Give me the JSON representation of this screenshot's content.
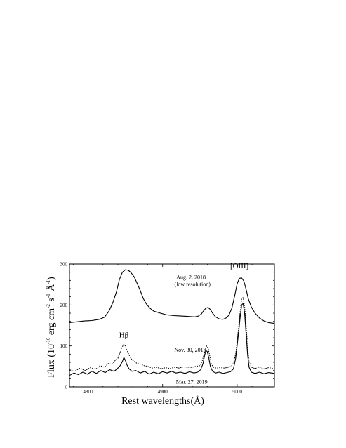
{
  "chart_data": {
    "type": "line",
    "xlabel": "Rest wavelengths",
    "xlabel_unit": "Å",
    "ylabel": {
      "prefix": "Flux  (10",
      "exp1": "-16",
      "mid": " erg cm",
      "exp2": "-2",
      "mid2": " s",
      "exp3": "-1",
      "mid3": " Å",
      "exp4": "-1",
      "suffix": ")"
    },
    "xlim": [
      4775,
      5050
    ],
    "ylim": [
      0,
      300
    ],
    "x_ticks": [
      {
        "value": 4800,
        "label": "4800"
      },
      {
        "value": 4900,
        "label": "4900"
      },
      {
        "value": 5000,
        "label": "5000"
      }
    ],
    "y_ticks": [
      {
        "value": 0,
        "label": "0"
      },
      {
        "value": 100,
        "label": "100"
      },
      {
        "value": 200,
        "label": "200"
      },
      {
        "value": 300,
        "label": "300"
      }
    ],
    "annotations": [
      {
        "id": "aug-label-1",
        "text": "Aug. 2, 2018",
        "x": 4938,
        "y": 263
      },
      {
        "id": "aug-label-2",
        "text": "(low resolution)",
        "x": 4940,
        "y": 246
      },
      {
        "id": "oiii-label",
        "text": "[OIII]",
        "x": 5003,
        "y": 290
      },
      {
        "id": "hbeta-label",
        "text": "Hβ",
        "x": 4848,
        "y": 121
      },
      {
        "id": "nov-label",
        "text": "Nov. 30, 2018",
        "x": 4937,
        "y": 86
      },
      {
        "id": "mar-label",
        "text": "Mar. 27, 2019",
        "x": 4939,
        "y": 8
      }
    ],
    "series": [
      {
        "id": "aug-2018",
        "style": "solid",
        "stroke_width": 1.1,
        "points": [
          [
            4775,
            157
          ],
          [
            4785,
            159
          ],
          [
            4795,
            161
          ],
          [
            4805,
            162
          ],
          [
            4815,
            165
          ],
          [
            4822,
            170
          ],
          [
            4828,
            185
          ],
          [
            4833,
            205
          ],
          [
            4838,
            232
          ],
          [
            4842,
            262
          ],
          [
            4846,
            280
          ],
          [
            4850,
            286
          ],
          [
            4854,
            285
          ],
          [
            4858,
            278
          ],
          [
            4862,
            268
          ],
          [
            4866,
            252
          ],
          [
            4870,
            235
          ],
          [
            4874,
            216
          ],
          [
            4878,
            203
          ],
          [
            4883,
            192
          ],
          [
            4888,
            185
          ],
          [
            4895,
            181
          ],
          [
            4905,
            176
          ],
          [
            4915,
            174
          ],
          [
            4925,
            173
          ],
          [
            4935,
            172
          ],
          [
            4943,
            171
          ],
          [
            4948,
            173
          ],
          [
            4952,
            178
          ],
          [
            4955,
            186
          ],
          [
            4958,
            192
          ],
          [
            4961,
            194
          ],
          [
            4964,
            189
          ],
          [
            4967,
            180
          ],
          [
            4971,
            171
          ],
          [
            4976,
            166
          ],
          [
            4981,
            165
          ],
          [
            4985,
            168
          ],
          [
            4989,
            175
          ],
          [
            4993,
            193
          ],
          [
            4997,
            225
          ],
          [
            5000,
            252
          ],
          [
            5003,
            265
          ],
          [
            5006,
            266
          ],
          [
            5009,
            258
          ],
          [
            5012,
            238
          ],
          [
            5015,
            215
          ],
          [
            5019,
            195
          ],
          [
            5024,
            180
          ],
          [
            5030,
            168
          ],
          [
            5036,
            161
          ],
          [
            5042,
            157
          ],
          [
            5050,
            155
          ]
        ]
      },
      {
        "id": "nov-2018",
        "style": "dotted",
        "stroke_width": 1.0,
        "points": [
          [
            4775,
            43
          ],
          [
            4782,
            38
          ],
          [
            4789,
            46
          ],
          [
            4796,
            40
          ],
          [
            4803,
            47
          ],
          [
            4810,
            43
          ],
          [
            4816,
            52
          ],
          [
            4822,
            48
          ],
          [
            4827,
            57
          ],
          [
            4832,
            55
          ],
          [
            4836,
            64
          ],
          [
            4840,
            70
          ],
          [
            4843,
            85
          ],
          [
            4846,
            98
          ],
          [
            4848,
            104
          ],
          [
            4850,
            100
          ],
          [
            4852,
            90
          ],
          [
            4855,
            78
          ],
          [
            4858,
            68
          ],
          [
            4862,
            62
          ],
          [
            4866,
            57
          ],
          [
            4870,
            56
          ],
          [
            4875,
            52
          ],
          [
            4880,
            50
          ],
          [
            4886,
            46
          ],
          [
            4892,
            48
          ],
          [
            4898,
            44
          ],
          [
            4904,
            47
          ],
          [
            4910,
            45
          ],
          [
            4916,
            48
          ],
          [
            4922,
            46
          ],
          [
            4928,
            49
          ],
          [
            4934,
            47
          ],
          [
            4940,
            48
          ],
          [
            4945,
            50
          ],
          [
            4950,
            52
          ],
          [
            4953,
            62
          ],
          [
            4955,
            76
          ],
          [
            4957,
            90
          ],
          [
            4959,
            100
          ],
          [
            4961,
            95
          ],
          [
            4963,
            78
          ],
          [
            4965,
            58
          ],
          [
            4968,
            48
          ],
          [
            4972,
            46
          ],
          [
            4977,
            47
          ],
          [
            4983,
            46
          ],
          [
            4988,
            48
          ],
          [
            4992,
            50
          ],
          [
            4995,
            58
          ],
          [
            4998,
            80
          ],
          [
            5001,
            130
          ],
          [
            5004,
            185
          ],
          [
            5006,
            216
          ],
          [
            5008,
            218
          ],
          [
            5010,
            198
          ],
          [
            5012,
            150
          ],
          [
            5014,
            95
          ],
          [
            5016,
            62
          ],
          [
            5019,
            48
          ],
          [
            5024,
            45
          ],
          [
            5030,
            48
          ],
          [
            5036,
            44
          ],
          [
            5042,
            47
          ],
          [
            5050,
            45
          ]
        ]
      },
      {
        "id": "mar-2019",
        "style": "solid",
        "stroke_width": 1.1,
        "points": [
          [
            4775,
            28
          ],
          [
            4781,
            34
          ],
          [
            4787,
            30
          ],
          [
            4793,
            36
          ],
          [
            4799,
            31
          ],
          [
            4805,
            38
          ],
          [
            4811,
            33
          ],
          [
            4817,
            40
          ],
          [
            4823,
            35
          ],
          [
            4829,
            42
          ],
          [
            4835,
            38
          ],
          [
            4840,
            46
          ],
          [
            4843,
            52
          ],
          [
            4846,
            62
          ],
          [
            4848,
            72
          ],
          [
            4850,
            65
          ],
          [
            4852,
            54
          ],
          [
            4855,
            44
          ],
          [
            4859,
            38
          ],
          [
            4864,
            40
          ],
          [
            4870,
            34
          ],
          [
            4876,
            38
          ],
          [
            4882,
            31
          ],
          [
            4888,
            36
          ],
          [
            4894,
            32
          ],
          [
            4900,
            37
          ],
          [
            4906,
            34
          ],
          [
            4912,
            38
          ],
          [
            4918,
            34
          ],
          [
            4924,
            36
          ],
          [
            4930,
            33
          ],
          [
            4936,
            37
          ],
          [
            4942,
            34
          ],
          [
            4947,
            36
          ],
          [
            4951,
            42
          ],
          [
            4954,
            56
          ],
          [
            4956,
            74
          ],
          [
            4958,
            89
          ],
          [
            4960,
            86
          ],
          [
            4962,
            70
          ],
          [
            4964,
            50
          ],
          [
            4967,
            38
          ],
          [
            4971,
            34
          ],
          [
            4976,
            36
          ],
          [
            4981,
            33
          ],
          [
            4986,
            35
          ],
          [
            4991,
            37
          ],
          [
            4995,
            44
          ],
          [
            4998,
            70
          ],
          [
            5001,
            118
          ],
          [
            5004,
            170
          ],
          [
            5006,
            200
          ],
          [
            5008,
            204
          ],
          [
            5010,
            180
          ],
          [
            5012,
            128
          ],
          [
            5014,
            78
          ],
          [
            5016,
            48
          ],
          [
            5019,
            36
          ],
          [
            5024,
            33
          ],
          [
            5030,
            36
          ],
          [
            5036,
            32
          ],
          [
            5042,
            35
          ],
          [
            5050,
            33
          ]
        ]
      }
    ]
  }
}
